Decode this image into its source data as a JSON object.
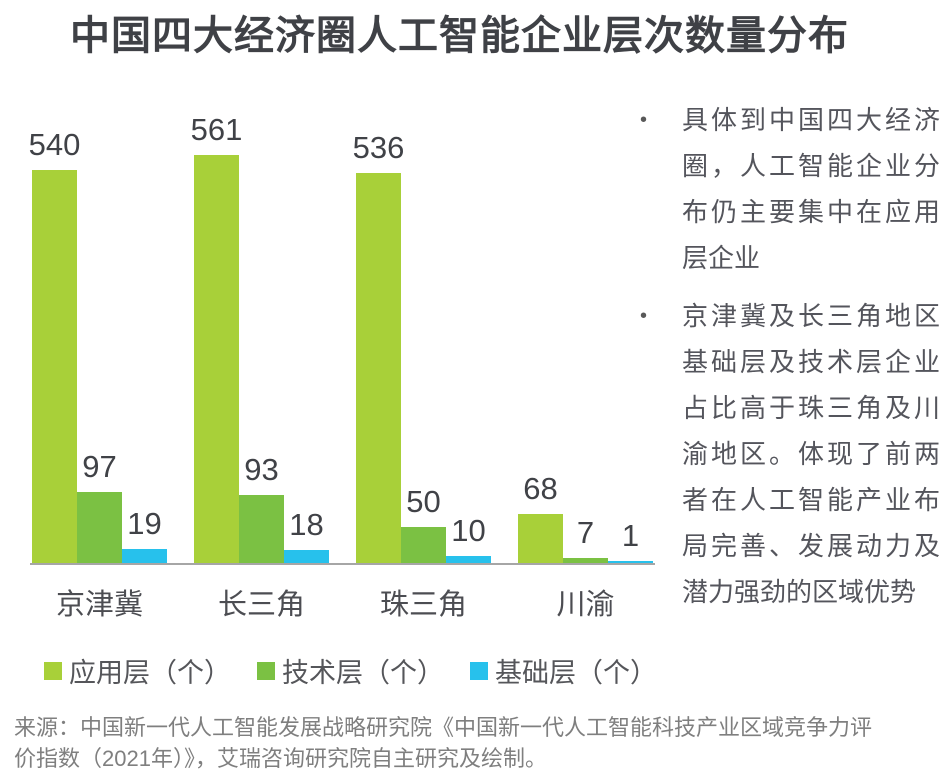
{
  "title": "中国四大经济圈人工智能企业层次数量分布",
  "chart_data": {
    "type": "bar",
    "categories": [
      "京津冀",
      "长三角",
      "珠三角",
      "川渝"
    ],
    "series": [
      {
        "key": "app-layer",
        "name": "应用层（个）",
        "color": "#a8d039",
        "values": [
          540,
          561,
          536,
          68
        ]
      },
      {
        "key": "tech-layer",
        "name": "技术层（个）",
        "color": "#7bc143",
        "values": [
          97,
          93,
          50,
          7
        ]
      },
      {
        "key": "base-layer",
        "name": "基础层（个）",
        "color": "#27c1ec",
        "values": [
          19,
          18,
          10,
          1
        ]
      }
    ],
    "ylim": [
      0,
      561
    ],
    "grid": false,
    "y_axis_shown": false,
    "value_labels_shown": true,
    "legend_position": "bottom",
    "axis_line_color": "#a6a6a6",
    "value_label_color": "#404247",
    "xlabel": "",
    "ylabel": ""
  },
  "insights": {
    "bullets": [
      "具体到中国四大经济圈，人工智能企业分布仍主要集中在应用层企业",
      "京津冀及长三角地区基础层及技术层企业占比高于珠三角及川渝地区。体现了前两者在人工智能产业布局完善、发展动力及潜力强劲的区域优势"
    ],
    "bullet_glyph": "•"
  },
  "source": "来源：中国新一代人工智能发展战略研究院《中国新一代人工智能科技产业区域竞争力评价指数（2021年）》，艾瑞咨询研究院自主研究及绘制。"
}
